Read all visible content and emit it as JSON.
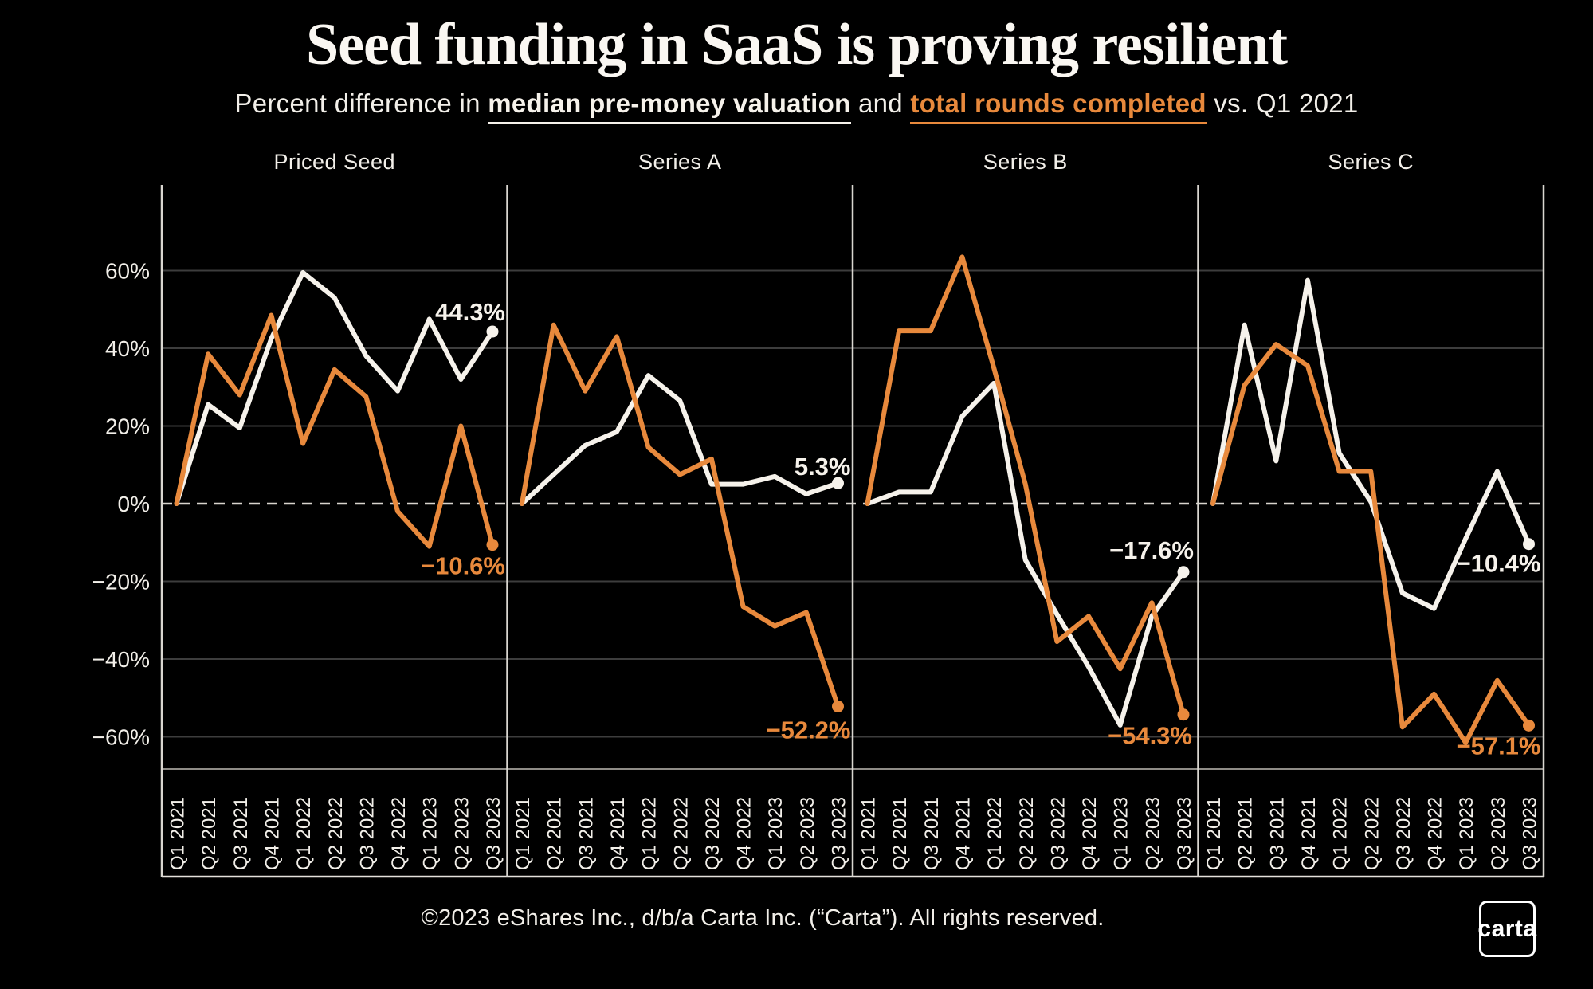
{
  "header": {
    "title": "Seed funding in SaaS is proving resilient",
    "subtitle": {
      "prefix": "Percent difference in ",
      "metric_valuation": "median pre-money valuation",
      "connector": " and ",
      "metric_rounds": "total rounds completed",
      "suffix": " vs. Q1 2021"
    }
  },
  "footer": {
    "copyright": "©2023 eShares Inc., d/b/a Carta Inc. (“Carta”). All rights reserved.",
    "logo_text": "carta"
  },
  "colors": {
    "background": "#000000",
    "valuation_line": "#F6F2EB",
    "rounds_line": "#E8893C",
    "gridline": "#3D3D3D",
    "zero_line": "#D8D4CD",
    "frame_line": "#D9D6D0",
    "band_top_line": "#8F8C87",
    "band_bottom_line": "#E5E2DC",
    "text": "#F2EFE9"
  },
  "chart_data": {
    "type": "line",
    "baseline_note": "values are percent difference vs. Q1 2021",
    "x_categories": [
      "Q1 2021",
      "Q2 2021",
      "Q3 2021",
      "Q4 2021",
      "Q1 2022",
      "Q2 2022",
      "Q3 2022",
      "Q4 2022",
      "Q1 2023",
      "Q2 2023",
      "Q3 2023"
    ],
    "y_axis": {
      "tick_labels": [
        "60%",
        "40%",
        "20%",
        "0%",
        "−20%",
        "−40%",
        "−60%"
      ],
      "tick_values": [
        60,
        40,
        20,
        0,
        -20,
        -40,
        -60
      ],
      "ylim": [
        -68,
        82
      ],
      "grid": true,
      "zero_line_dashed": true
    },
    "series_legend": [
      {
        "name": "Median pre-money valuation",
        "color": "#F6F2EB"
      },
      {
        "name": "Total rounds completed",
        "color": "#E8893C"
      }
    ],
    "panels": [
      {
        "title": "Priced Seed",
        "valuation": {
          "values": [
            0,
            25.5,
            19.5,
            42.5,
            59.5,
            53,
            38,
            29,
            47.5,
            32,
            44.3
          ],
          "end_label": "44.3%"
        },
        "rounds": {
          "values": [
            0,
            38.5,
            28,
            48.5,
            15.5,
            34.5,
            27.5,
            -2,
            -11,
            20,
            -10.6
          ],
          "end_label": "−10.6%"
        }
      },
      {
        "title": "Series A",
        "valuation": {
          "values": [
            0,
            7.5,
            15,
            18.5,
            33,
            26.5,
            5,
            5,
            7,
            2.5,
            5.3
          ],
          "end_label": "5.3%"
        },
        "rounds": {
          "values": [
            0,
            46,
            29,
            43,
            14.5,
            7.5,
            11.5,
            -26.5,
            -31.5,
            -28,
            -52.2
          ],
          "end_label": "−52.2%"
        }
      },
      {
        "title": "Series B",
        "valuation": {
          "values": [
            0,
            3,
            3,
            22.5,
            31,
            -14.5,
            -28.5,
            -42,
            -57,
            -29,
            -17.6
          ],
          "end_label": "−17.6%"
        },
        "rounds": {
          "values": [
            0,
            44.5,
            44.5,
            63.5,
            35,
            5,
            -35.5,
            -29,
            -42.5,
            -25.5,
            -54.3
          ],
          "end_label": "−54.3%"
        }
      },
      {
        "title": "Series C",
        "valuation": {
          "values": [
            0,
            46,
            11,
            57.5,
            13,
            0.5,
            -23,
            -27,
            -9,
            8.3,
            -10.4
          ],
          "end_label": "−10.4%"
        },
        "rounds": {
          "values": [
            0,
            30.5,
            41,
            35.5,
            8.3,
            8.3,
            -57.5,
            -49,
            -61.5,
            -45.5,
            -57.1
          ],
          "end_label": "−57.1%"
        }
      }
    ]
  }
}
